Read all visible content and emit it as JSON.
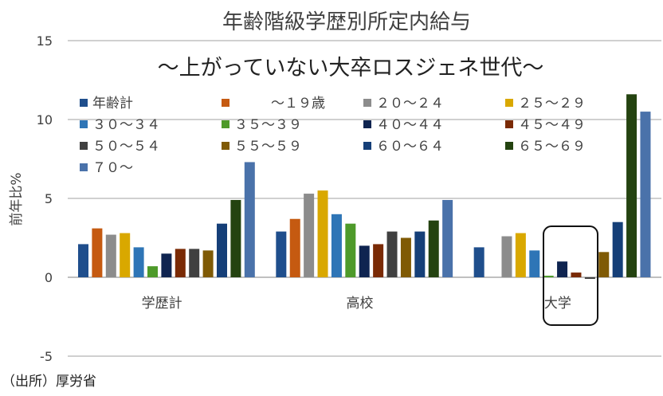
{
  "chart_data": {
    "type": "bar",
    "title": "年齢階級学歴別所定内給与",
    "subtitle": "～上がっていない大卒ロスジェネ世代～",
    "ylabel": "前年比%",
    "xlabel": "",
    "ylim": [
      -5,
      15
    ],
    "yticks": [
      -5,
      0,
      5,
      10,
      15
    ],
    "grid": true,
    "legend_placement": "top",
    "categories": [
      "学歴計",
      "高校",
      "大学"
    ],
    "highlighted_category": "大学",
    "source": "（出所）厚労省",
    "series": [
      {
        "name": "年齢計",
        "color": "#1f4e8c",
        "values": [
          2.1,
          2.9,
          1.9
        ]
      },
      {
        "name": "～１９歳",
        "color": "#c55a11",
        "values": [
          3.1,
          3.7,
          null
        ]
      },
      {
        "name": "２０～２４",
        "color": "#8c8c8c",
        "values": [
          2.7,
          5.3,
          2.6
        ]
      },
      {
        "name": "２５～２９",
        "color": "#d9a800",
        "values": [
          2.8,
          5.5,
          2.8
        ]
      },
      {
        "name": "３０～３４",
        "color": "#2e75b6",
        "values": [
          1.9,
          4.0,
          1.7
        ]
      },
      {
        "name": "３５～３９",
        "color": "#4e9a2a",
        "values": [
          0.7,
          3.4,
          0.1
        ]
      },
      {
        "name": "４０～４４",
        "color": "#0f2450",
        "values": [
          1.5,
          2.0,
          1.0
        ]
      },
      {
        "name": "４５～４９",
        "color": "#7a2a05",
        "values": [
          1.8,
          2.1,
          0.3
        ]
      },
      {
        "name": "５０～５４",
        "color": "#404040",
        "values": [
          1.8,
          2.9,
          -0.1
        ]
      },
      {
        "name": "５５～５９",
        "color": "#7f5a05",
        "values": [
          1.7,
          2.5,
          1.6
        ]
      },
      {
        "name": "６０～６４",
        "color": "#153f78",
        "values": [
          3.4,
          2.9,
          3.5
        ]
      },
      {
        "name": "６５～６９",
        "color": "#244310",
        "values": [
          4.9,
          3.6,
          11.6
        ]
      },
      {
        "name": "７０～",
        "color": "#4a72aa",
        "values": [
          7.3,
          4.9,
          10.5
        ]
      }
    ]
  }
}
